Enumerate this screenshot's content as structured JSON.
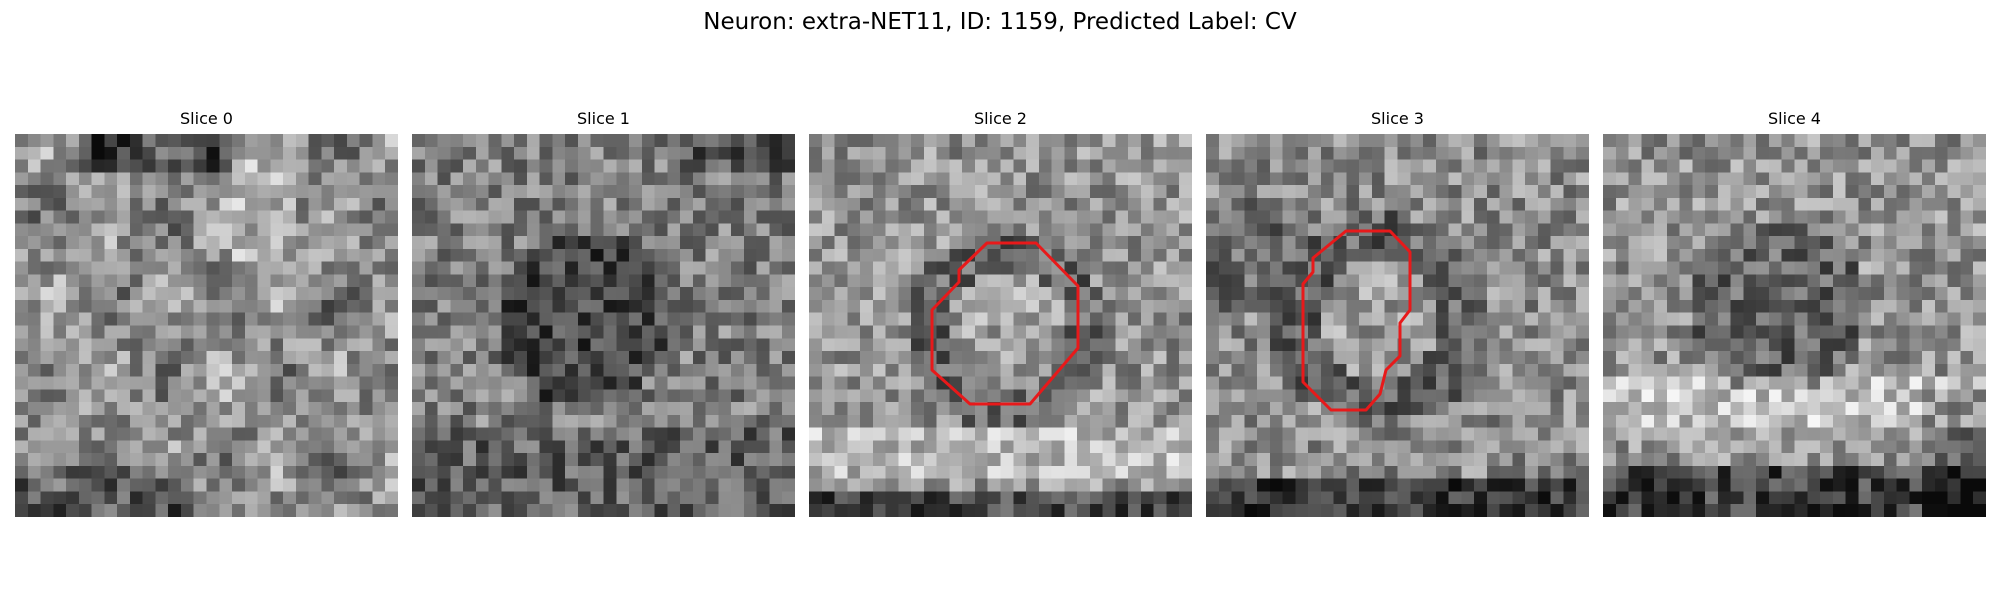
{
  "figure": {
    "title": "Neuron: extra-NET11, ID: 1159, Predicted Label: CV"
  },
  "contour_color": "#e8191a",
  "slices": [
    {
      "label": "Slice 0",
      "has_contour": false
    },
    {
      "label": "Slice 1",
      "has_contour": false
    },
    {
      "label": "Slice 2",
      "has_contour": true
    },
    {
      "label": "Slice 3",
      "has_contour": true
    },
    {
      "label": "Slice 4",
      "has_contour": false
    }
  ]
}
